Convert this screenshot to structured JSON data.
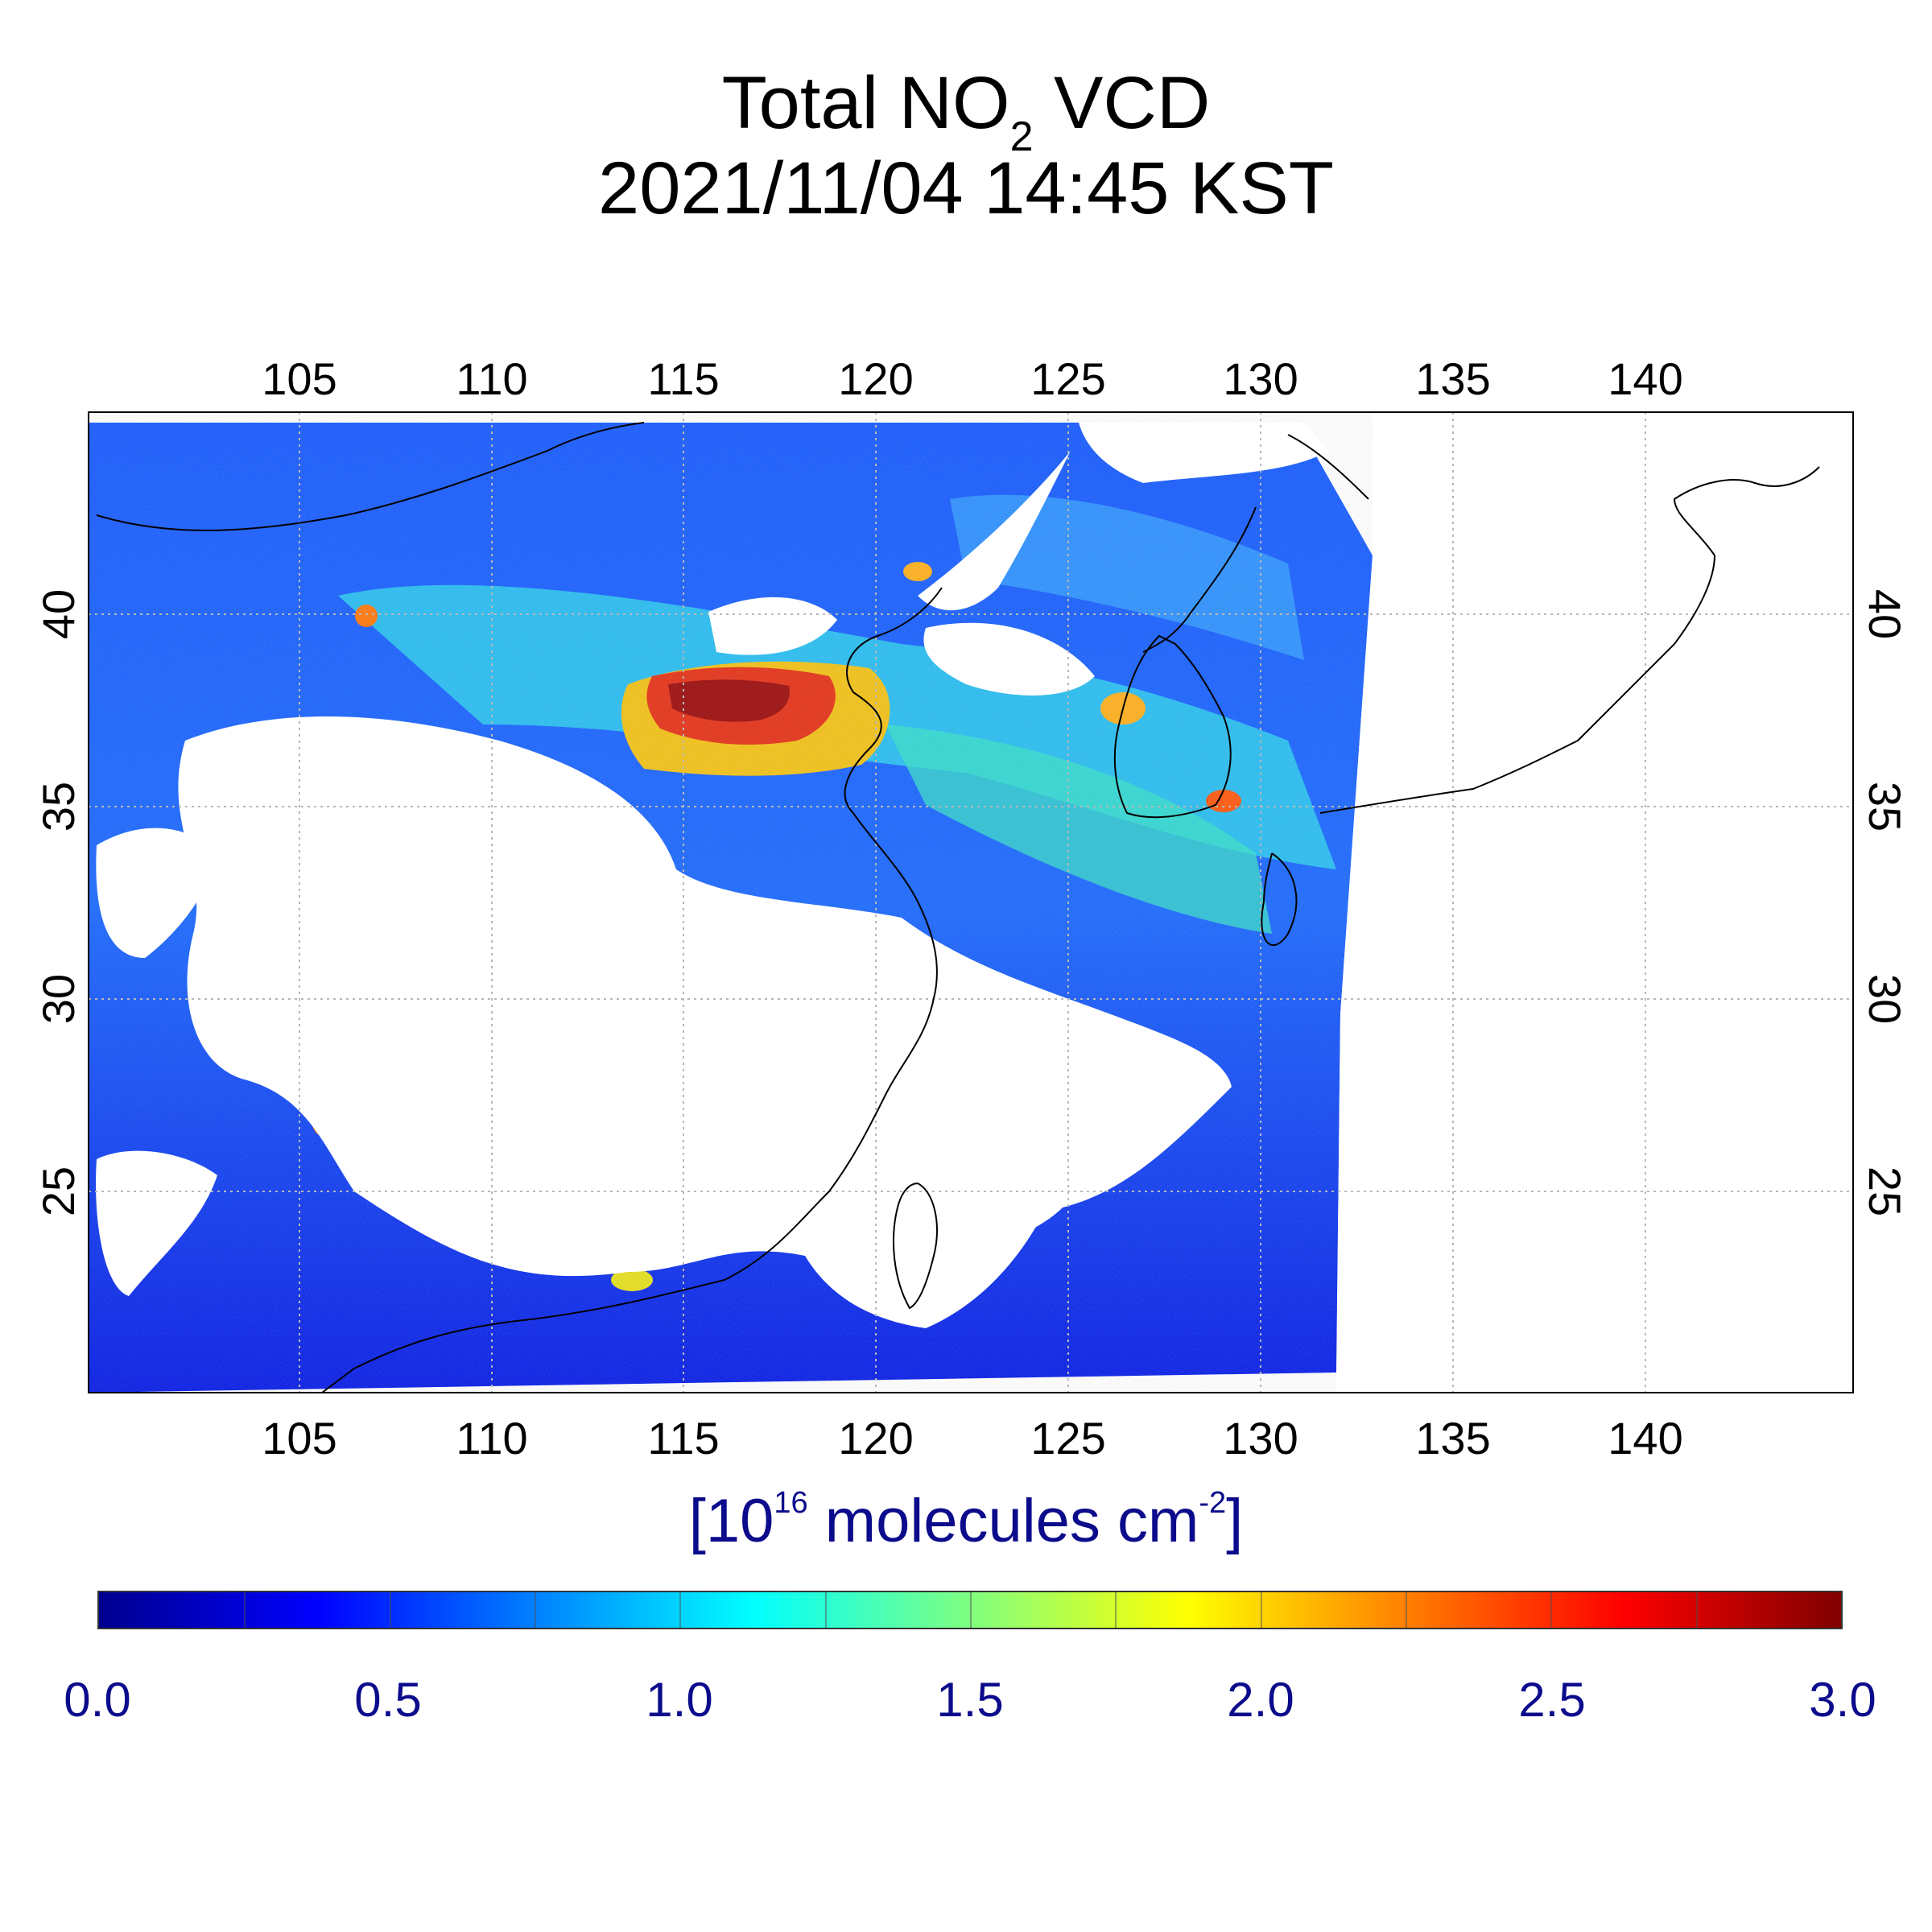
{
  "title": {
    "line1_main": "Total NO",
    "line1_sub": "2",
    "line1_rest": " VCD",
    "line2": "2021/11/04 14:45 KST"
  },
  "map": {
    "lon_ticks": [
      "105",
      "110",
      "115",
      "120",
      "125",
      "130",
      "135",
      "140"
    ],
    "lat_ticks": [
      "40",
      "35",
      "30",
      "25"
    ]
  },
  "colorbar": {
    "unit_open": "[10",
    "unit_exp1": "16",
    "unit_mid": " molecules cm",
    "unit_exp2": "-2",
    "unit_close": "]",
    "tick_labels": [
      "0.0",
      "0.5",
      "1.0",
      "1.5",
      "2.0",
      "2.5",
      "3.0"
    ],
    "colors": [
      "#00008f",
      "#0000ff",
      "#0080ff",
      "#00ffff",
      "#80ff80",
      "#ffff00",
      "#ff8000",
      "#ff0000",
      "#800000"
    ],
    "range": [
      0.0,
      3.0
    ]
  }
}
